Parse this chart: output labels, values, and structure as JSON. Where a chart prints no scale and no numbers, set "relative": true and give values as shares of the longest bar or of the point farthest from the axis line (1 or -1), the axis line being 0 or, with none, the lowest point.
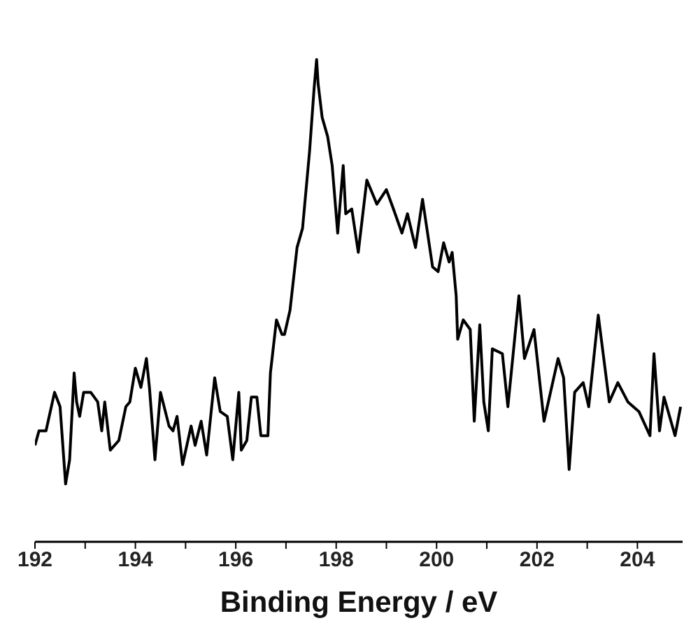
{
  "chart_data": {
    "type": "line",
    "xlabel": "Binding Energy / eV",
    "relative": true,
    "color": "#000000",
    "marker": "none",
    "legend": false,
    "grid": false,
    "xlim": [
      192,
      204.9
    ],
    "xticks": [
      192,
      {
        "value": 193,
        "label": null
      },
      194,
      {
        "value": 195,
        "label": null
      },
      196,
      {
        "value": 197,
        "label": null
      },
      198,
      {
        "value": 199,
        "label": null
      },
      200,
      {
        "value": 201,
        "label": null
      },
      202,
      {
        "value": 203,
        "label": null
      },
      204
    ],
    "x": [
      192.0,
      192.08,
      192.22,
      192.39,
      192.5,
      192.61,
      192.69,
      192.78,
      192.83,
      192.89,
      192.97,
      193.11,
      193.25,
      193.33,
      193.39,
      193.5,
      193.67,
      193.81,
      193.89,
      194.0,
      194.11,
      194.22,
      194.28,
      194.39,
      194.5,
      194.67,
      194.75,
      194.83,
      194.94,
      195.11,
      195.19,
      195.31,
      195.42,
      195.58,
      195.69,
      195.83,
      195.94,
      196.06,
      196.11,
      196.22,
      196.31,
      196.42,
      196.5,
      196.64,
      196.69,
      196.81,
      196.92,
      196.97,
      197.08,
      197.22,
      197.33,
      197.47,
      197.56,
      197.61,
      197.64,
      197.72,
      197.83,
      197.92,
      198.03,
      198.14,
      198.19,
      198.31,
      198.44,
      198.61,
      198.81,
      199.0,
      199.14,
      199.31,
      199.42,
      199.58,
      199.72,
      199.92,
      200.03,
      200.14,
      200.25,
      200.31,
      200.39,
      200.42,
      200.53,
      200.67,
      200.75,
      200.86,
      200.94,
      201.03,
      201.11,
      201.31,
      201.42,
      201.64,
      201.75,
      201.94,
      202.14,
      202.42,
      202.53,
      202.64,
      202.75,
      202.92,
      203.03,
      203.22,
      203.44,
      203.61,
      203.81,
      204.03,
      204.25,
      204.33,
      204.44,
      204.53,
      204.75,
      204.86
    ],
    "values": [
      0.2,
      0.23,
      0.23,
      0.31,
      0.28,
      0.12,
      0.17,
      0.35,
      0.29,
      0.26,
      0.31,
      0.31,
      0.29,
      0.23,
      0.29,
      0.19,
      0.21,
      0.28,
      0.29,
      0.36,
      0.32,
      0.38,
      0.32,
      0.17,
      0.31,
      0.24,
      0.23,
      0.26,
      0.16,
      0.24,
      0.2,
      0.25,
      0.18,
      0.34,
      0.27,
      0.26,
      0.17,
      0.31,
      0.19,
      0.21,
      0.3,
      0.3,
      0.22,
      0.22,
      0.35,
      0.46,
      0.43,
      0.43,
      0.48,
      0.61,
      0.65,
      0.81,
      0.94,
      1,
      0.95,
      0.88,
      0.84,
      0.78,
      0.64,
      0.78,
      0.68,
      0.69,
      0.6,
      0.75,
      0.7,
      0.73,
      0.69,
      0.64,
      0.68,
      0.61,
      0.71,
      0.57,
      0.56,
      0.62,
      0.58,
      0.6,
      0.51,
      0.42,
      0.46,
      0.44,
      0.25,
      0.45,
      0.29,
      0.23,
      0.4,
      0.39,
      0.28,
      0.51,
      0.38,
      0.44,
      0.25,
      0.38,
      0.34,
      0.15,
      0.31,
      0.33,
      0.28,
      0.47,
      0.29,
      0.33,
      0.29,
      0.27,
      0.22,
      0.39,
      0.23,
      0.3,
      0.22,
      0.28
    ]
  }
}
